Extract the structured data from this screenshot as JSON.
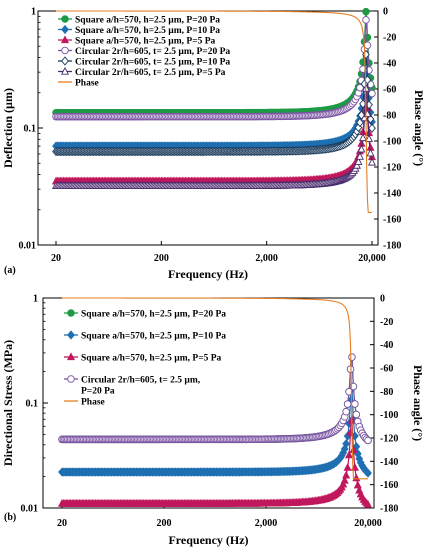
{
  "colors": {
    "square20": "#1e9a45",
    "square10": "#1f6fb2",
    "square5": "#c0185d",
    "circ20": "#7b54a3",
    "circ10": "#1a3a5c",
    "circ5": "#4a2d6e",
    "phase": "#e67e22"
  },
  "chart_data": [
    {
      "type": "line",
      "panel_label": "(a)",
      "xlabel": "Frequency (Hz)",
      "ylabel": "Deflection (µm)",
      "y2label": "Phase angle (°)",
      "x_scale": "log",
      "y_scale": "log",
      "xlim": [
        20,
        20000
      ],
      "ylim": [
        0.01,
        1
      ],
      "y2lim": [
        -180,
        0
      ],
      "x_ticks": [
        20,
        200,
        2000,
        20000
      ],
      "x_tick_labels": [
        "20",
        "200",
        "2,000",
        "20,000"
      ],
      "y_ticks": [
        0.01,
        0.1,
        1
      ],
      "y_tick_labels": [
        "0.01",
        "0.1",
        "1"
      ],
      "y2_ticks": [
        0,
        -20,
        -40,
        -60,
        -80,
        -100,
        -120,
        -140,
        -160,
        -180
      ],
      "y2_tick_labels": [
        "0",
        "-20",
        "-40",
        "-60",
        "-80",
        "-100",
        "-120",
        "-140",
        "-160",
        "-180"
      ],
      "resonance_hz": 17600,
      "legend_position": "top-left",
      "series": [
        {
          "name": "Square a/h=570, h=2.5 µm, P=20 Pa",
          "axis": "y",
          "marker": "filled-circle",
          "color_key": "square20",
          "baseline": 0.135,
          "peak": 1.0
        },
        {
          "name": "Square a/h=570, h=2.5 µm, P=10 Pa",
          "axis": "y",
          "marker": "filled-diamond",
          "color_key": "square10",
          "baseline": 0.07,
          "peak": 0.5
        },
        {
          "name": "Square a/h=570, h=2.5 µm, P=5 Pa",
          "axis": "y",
          "marker": "filled-triangle",
          "color_key": "square5",
          "baseline": 0.035,
          "peak": 0.25
        },
        {
          "name": "Circular 2r/h=605, t= 2.5 µm, P=20 Pa",
          "axis": "y",
          "marker": "open-circle",
          "color_key": "circ20",
          "baseline": 0.125,
          "peak": 0.85
        },
        {
          "name": "Circular 2r/h=605, t= 2.5 µm, P=10 Pa",
          "axis": "y",
          "marker": "open-diamond",
          "color_key": "circ10",
          "baseline": 0.063,
          "peak": 0.43
        },
        {
          "name": "Circular 2r/h=605, t= 2.5 µm, P=5 Pa",
          "axis": "y",
          "marker": "open-triangle",
          "color_key": "circ5",
          "baseline": 0.032,
          "peak": 0.22
        },
        {
          "name": "Phase",
          "axis": "y2",
          "marker": "none",
          "color_key": "phase",
          "start": 0,
          "end": -155
        }
      ]
    },
    {
      "type": "line",
      "panel_label": "(b)",
      "xlabel": "Frequency (Hz)",
      "ylabel": "Directional Stress (MPa)",
      "y2label": "Phase angle (°)",
      "x_scale": "log",
      "y_scale": "log",
      "xlim": [
        20,
        20000
      ],
      "ylim": [
        0.01,
        1
      ],
      "y2lim": [
        -180,
        0
      ],
      "x_ticks": [
        20,
        200,
        2000,
        20000
      ],
      "x_tick_labels": [
        "20",
        "200",
        "2,000",
        "20,000"
      ],
      "y_ticks": [
        0.01,
        0.1,
        1
      ],
      "y_tick_labels": [
        "0.01",
        "0.1",
        "1"
      ],
      "y2_ticks": [
        0,
        -20,
        -40,
        -60,
        -80,
        -100,
        -120,
        -140,
        -160,
        -180
      ],
      "y2_tick_labels": [
        "0",
        "-20",
        "-40",
        "-60",
        "-80",
        "-100",
        "-120",
        "-140",
        "-160",
        "-180"
      ],
      "resonance_hz": 13800,
      "legend_position": "top-left",
      "series": [
        {
          "name": "Square a/h=570, h=2.5 µm, P=20 Pa",
          "axis": "y",
          "marker": "filled-circle",
          "color_key": "square20",
          "baseline": 0.045,
          "peak": 0.3
        },
        {
          "name": "Square a/h=570, h=2.5 µm, P=10 Pa",
          "axis": "y",
          "marker": "filled-diamond",
          "color_key": "square10",
          "baseline": 0.022,
          "peak": 0.15
        },
        {
          "name": "Square a/h=570, h=2.5 µm, P=5 Pa",
          "axis": "y",
          "marker": "filled-triangle",
          "color_key": "square5",
          "baseline": 0.011,
          "peak": 0.075
        },
        {
          "name": "Circular 2r/h=605, t= 2.5 µm, P=20 Pa",
          "axis": "y",
          "marker": "open-circle",
          "color_key": "circ20",
          "baseline": 0.045,
          "peak": 0.3
        },
        {
          "name": "Phase",
          "axis": "y2",
          "marker": "none",
          "color_key": "phase",
          "start": 0,
          "end": -155
        }
      ]
    }
  ]
}
